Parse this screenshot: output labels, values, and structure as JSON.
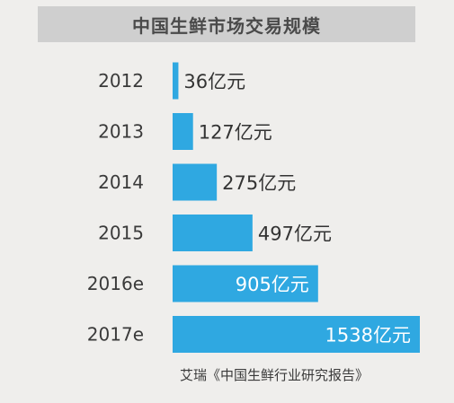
{
  "chart_data": {
    "type": "bar",
    "orientation": "horizontal",
    "title": "中国生鲜市场交易规模",
    "categories": [
      "2012",
      "2013",
      "2014",
      "2015",
      "2016e",
      "2017e"
    ],
    "values": [
      36,
      127,
      275,
      497,
      905,
      1538
    ],
    "value_labels": [
      "36亿元",
      "127亿元",
      "275亿元",
      "497亿元",
      "905亿元",
      "1538亿元"
    ],
    "unit": "亿元",
    "xlabel": "",
    "ylabel": "",
    "xlim": [
      0,
      1538
    ],
    "grid": false,
    "legend": "none",
    "bar_color": "#2fa8e1",
    "source": "艾瑞《中国生鲜行业研究报告》"
  }
}
